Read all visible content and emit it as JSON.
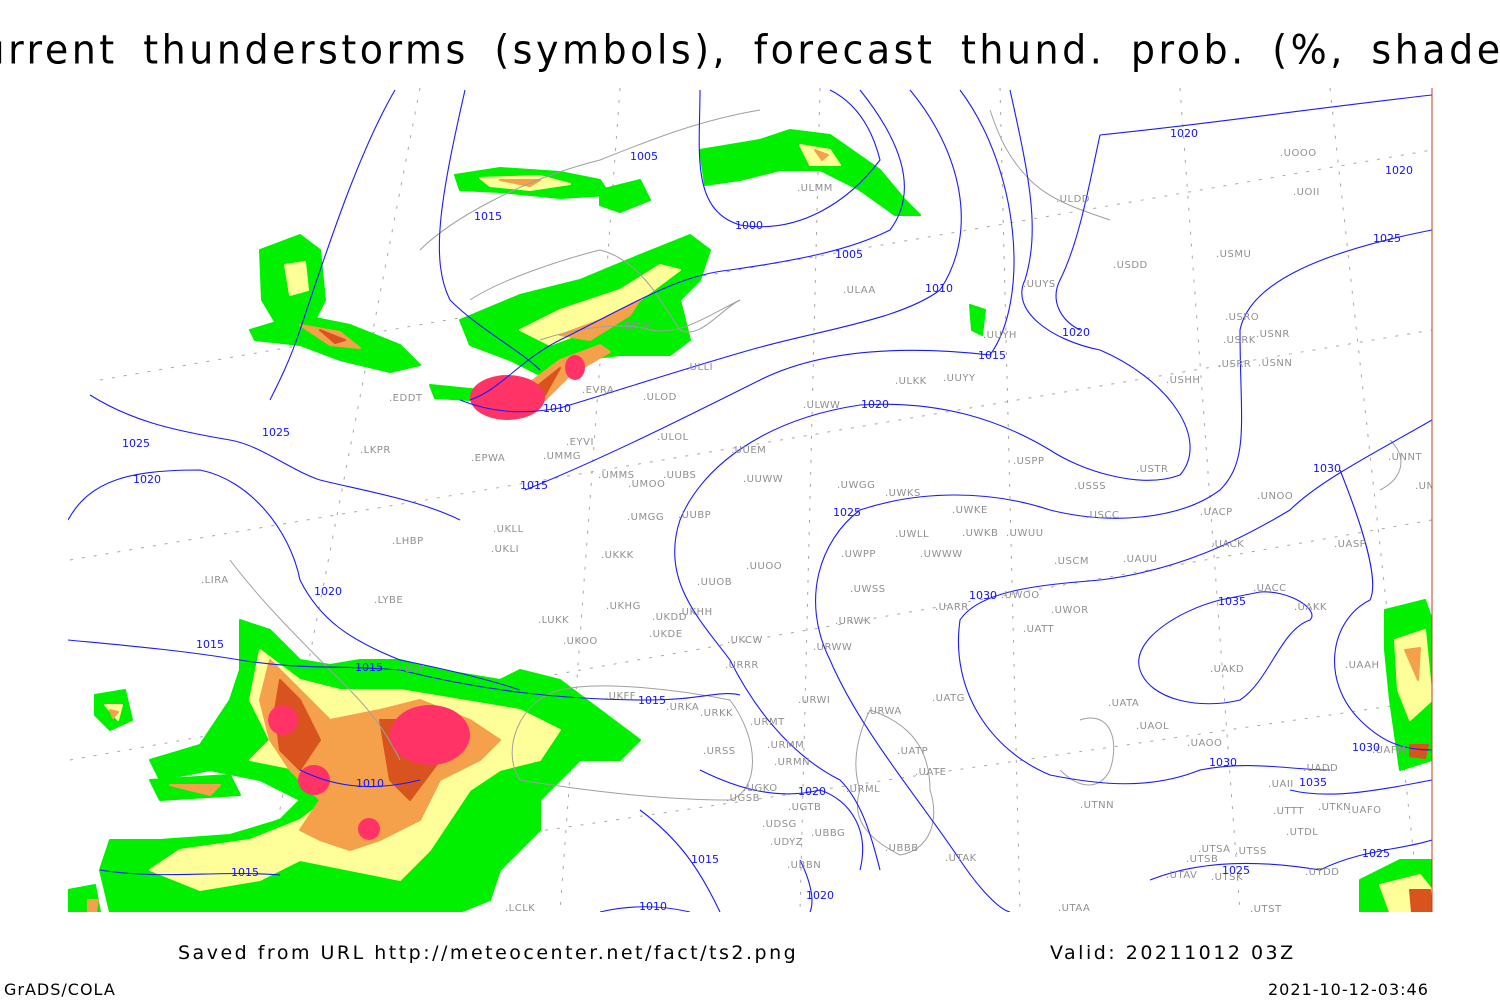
{
  "title": "Current thunderstorms (symbols), forecast thund. prob. (%, shaded)",
  "footer": {
    "source": "Saved from URL http://meteocenter.net/fact/ts2.png",
    "valid": "Valid: 20211012 03Z",
    "software": "GrADS/COLA",
    "timestamp": "2021-10-12-03:46"
  },
  "colors": {
    "prob_low": "#00f000",
    "prob_mid": "#ffff99",
    "prob_high": "#f5a04a",
    "prob_very_high": "#d9531e",
    "thunderstorm_symbol": "#ff3366",
    "isobar": "#1a1aff",
    "coastline": "#a0a0a0",
    "station_label": "#909090"
  },
  "isobar_labels": [
    "1005",
    "1015",
    "1000",
    "1005",
    "1010",
    "1020",
    "1020",
    "1025",
    "1020",
    "1015",
    "1010",
    "1020",
    "1025",
    "1025",
    "1020",
    "1015",
    "1030",
    "1025",
    "1020",
    "1030",
    "1035",
    "1015",
    "1015",
    "1015",
    "1010",
    "1030",
    "1030",
    "1035",
    "1020",
    "1015",
    "1015",
    "1025",
    "1025",
    "1020",
    "1010"
  ],
  "stations": [
    "ULMM",
    "ULDD",
    "UOOO",
    "UOII",
    "USDD",
    "USMU",
    "ULAA",
    "UUYS",
    "USRO",
    "USRK",
    "USNR",
    "USRR",
    "USNN",
    "UUYH",
    "EFHK",
    "EVRA",
    "ULOD",
    "ULLI",
    "EDDT",
    "UUYY",
    "ULKK",
    "USHH",
    "ULWW",
    "EYVI",
    "ULOL",
    "LKPR",
    "EPWA",
    "UMMG",
    "UUEM",
    "USTR",
    "USPP",
    "UNNT",
    "UMMS",
    "UUBS",
    "UMOO",
    "UUWW",
    "UWGG",
    "UWKS",
    "USSS",
    "UNBB",
    "UNOO",
    "UMGG",
    "UUBP",
    "UWKE",
    "UACP",
    "USCC",
    "UKLL",
    "UWKB",
    "UWUU",
    "UWLL",
    "LHBP",
    "UKLI",
    "UACK",
    "UASP",
    "UKKK",
    "UWPP",
    "UWWW",
    "USCM",
    "UAUU",
    "LIRA",
    "UUOO",
    "UUOB",
    "LYBE",
    "UKHG",
    "UKHH",
    "UKDD",
    "UWSS",
    "UWOO",
    "UARR",
    "UACC",
    "UAKK",
    "UWOR",
    "LUKK",
    "URWK",
    "UKDE",
    "UKOO",
    "UATT",
    "UKCW",
    "URWW",
    "LBSF",
    "URRR",
    "UAKD",
    "UAAH",
    "UKFF",
    "URWI",
    "UATG",
    "URKA",
    "UATA",
    "URKK",
    "URMT",
    "UAOL",
    "URWA",
    "URSS",
    "UATP",
    "UAOO",
    "URMM",
    "UAFM",
    "URMN",
    "UATE",
    "UADD",
    "UGKO",
    "URML",
    "UAII",
    "UGSB",
    "UGTB",
    "UTNN",
    "UTTT",
    "UTKN",
    "UAFO",
    "UDSG",
    "UBBG",
    "UTDL",
    "UDYZ",
    "UBBB",
    "UTSA",
    "UTSS",
    "UTAK",
    "UTSB",
    "UBBN",
    "UTAV",
    "UTSK",
    "UTDD",
    "UTAA",
    "UTST",
    "LCLK"
  ]
}
